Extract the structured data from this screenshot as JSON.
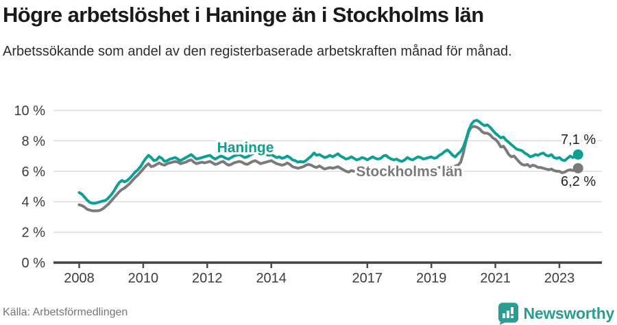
{
  "header": {
    "title": "Högre arbetslöshet i Haninge än i Stockholms län",
    "subtitle": "Arbetssökande som andel av den registerbaserade arbetskraften månad för månad."
  },
  "chart_data": {
    "type": "line",
    "title": "Högre arbetslöshet i Haninge än i Stockholms län",
    "subtitle": "Arbetssökande som andel av den registerbaserade arbetskraften månad för månad.",
    "x_start": "2008-01",
    "x_interval": "monthly",
    "x_end": "2023-08",
    "ylim": [
      0,
      10
    ],
    "grid": "horizontal",
    "y_ticks": [
      {
        "value": 0,
        "label": "0 %"
      },
      {
        "value": 2,
        "label": "2 %"
      },
      {
        "value": 4,
        "label": "4 %"
      },
      {
        "value": 6,
        "label": "6 %"
      },
      {
        "value": 8,
        "label": "8 %"
      },
      {
        "value": 10,
        "label": "10 %"
      }
    ],
    "x_ticks": [
      {
        "year": 2008,
        "label": "2008"
      },
      {
        "year": 2010,
        "label": "2010"
      },
      {
        "year": 2012,
        "label": "2012"
      },
      {
        "year": 2014,
        "label": "2014"
      },
      {
        "year": 2017,
        "label": "2017"
      },
      {
        "year": 2019,
        "label": "2019"
      },
      {
        "year": 2021,
        "label": "2021"
      },
      {
        "year": 2023,
        "label": "2023"
      }
    ],
    "series": [
      {
        "name": "Haninge",
        "color": "#0ba093",
        "end_label": "7,1 %",
        "last_value": 7.1,
        "values": [
          4.6,
          4.5,
          4.3,
          4.1,
          3.95,
          3.9,
          3.9,
          3.95,
          4.0,
          4.05,
          4.1,
          4.25,
          4.45,
          4.7,
          5.0,
          5.25,
          5.4,
          5.3,
          5.4,
          5.55,
          5.75,
          5.95,
          6.1,
          6.3,
          6.6,
          6.85,
          7.05,
          6.9,
          6.7,
          6.75,
          6.95,
          6.85,
          6.65,
          6.7,
          6.8,
          6.85,
          6.9,
          6.8,
          6.7,
          6.8,
          6.9,
          7.0,
          7.1,
          6.95,
          6.8,
          6.85,
          6.9,
          6.95,
          7.0,
          7.05,
          6.9,
          6.8,
          6.9,
          7.0,
          6.95,
          6.85,
          6.8,
          6.9,
          7.0,
          7.05,
          7.1,
          7.0,
          6.9,
          6.95,
          7.05,
          7.15,
          7.2,
          7.1,
          7.0,
          7.05,
          7.1,
          7.05,
          7.1,
          7.0,
          6.9,
          6.95,
          6.85,
          6.9,
          7.0,
          6.9,
          6.75,
          6.7,
          6.6,
          6.65,
          6.6,
          6.7,
          6.85,
          7.0,
          7.2,
          7.05,
          7.1,
          7.0,
          6.9,
          6.95,
          7.05,
          6.95,
          7.05,
          7.15,
          7.0,
          6.9,
          6.8,
          6.85,
          6.95,
          6.85,
          6.75,
          6.8,
          6.9,
          6.85,
          6.75,
          6.85,
          6.95,
          6.85,
          6.8,
          6.85,
          7.0,
          7.05,
          6.9,
          6.8,
          6.75,
          6.8,
          6.7,
          6.65,
          6.75,
          6.9,
          6.8,
          6.75,
          6.85,
          6.95,
          6.9,
          6.8,
          6.85,
          6.9,
          6.95,
          6.85,
          6.9,
          7.05,
          7.15,
          7.3,
          7.4,
          7.25,
          7.05,
          6.95,
          7.15,
          7.3,
          7.6,
          8.1,
          8.7,
          9.1,
          9.3,
          9.35,
          9.25,
          9.1,
          9.0,
          9.05,
          8.9,
          8.7,
          8.5,
          8.35,
          8.2,
          8.25,
          8.05,
          7.9,
          7.75,
          7.6,
          7.45,
          7.4,
          7.35,
          7.2,
          7.1,
          6.95,
          7.0,
          7.1,
          7.05,
          7.15,
          7.2,
          7.05,
          7.0,
          7.1,
          6.9,
          6.85,
          6.9,
          6.75,
          6.7,
          6.85,
          7.0,
          6.9,
          7.0,
          7.1
        ]
      },
      {
        "name": "Stockholms län",
        "color": "#7a7a7a",
        "end_label": "6,2 %",
        "last_value": 6.2,
        "values": [
          3.8,
          3.75,
          3.65,
          3.5,
          3.45,
          3.4,
          3.4,
          3.4,
          3.45,
          3.55,
          3.7,
          3.85,
          4.05,
          4.25,
          4.45,
          4.65,
          4.8,
          4.9,
          5.05,
          5.2,
          5.4,
          5.6,
          5.75,
          5.95,
          6.15,
          6.35,
          6.5,
          6.3,
          6.35,
          6.45,
          6.55,
          6.45,
          6.4,
          6.5,
          6.55,
          6.6,
          6.65,
          6.6,
          6.5,
          6.55,
          6.6,
          6.7,
          6.75,
          6.6,
          6.5,
          6.55,
          6.6,
          6.55,
          6.6,
          6.65,
          6.55,
          6.45,
          6.5,
          6.6,
          6.65,
          6.5,
          6.4,
          6.45,
          6.55,
          6.6,
          6.65,
          6.6,
          6.5,
          6.45,
          6.55,
          6.65,
          6.7,
          6.6,
          6.5,
          6.55,
          6.6,
          6.65,
          6.7,
          6.6,
          6.5,
          6.45,
          6.4,
          6.45,
          6.55,
          6.45,
          6.3,
          6.25,
          6.2,
          6.25,
          6.3,
          6.4,
          6.45,
          6.4,
          6.3,
          6.25,
          6.35,
          6.25,
          6.15,
          6.2,
          6.25,
          6.2,
          6.25,
          6.3,
          6.2,
          6.1,
          6.0,
          5.95,
          6.05,
          6.0,
          5.95,
          6.0,
          6.05,
          6.0,
          5.95,
          6.0,
          6.05,
          6.0,
          5.95,
          6.0,
          6.1,
          6.05,
          6.0,
          6.05,
          6.1,
          6.05,
          6.0,
          5.95,
          6.05,
          6.15,
          6.1,
          6.05,
          6.1,
          6.15,
          6.1,
          6.05,
          6.1,
          6.15,
          6.2,
          6.15,
          6.2,
          6.25,
          6.3,
          6.35,
          6.4,
          6.35,
          6.3,
          6.35,
          6.4,
          6.6,
          7.2,
          8.0,
          8.6,
          8.9,
          8.95,
          8.9,
          8.8,
          8.6,
          8.5,
          8.5,
          8.4,
          8.2,
          8.1,
          7.9,
          7.6,
          7.65,
          7.4,
          7.1,
          6.95,
          7.0,
          6.8,
          6.6,
          6.45,
          6.4,
          6.45,
          6.3,
          6.4,
          6.35,
          6.25,
          6.25,
          6.2,
          6.15,
          6.1,
          6.15,
          6.05,
          6.0,
          6.0,
          5.9,
          5.95,
          6.05,
          6.1,
          6.05,
          6.1,
          6.2
        ]
      }
    ]
  },
  "footer": {
    "source": "Källa: Arbetsförmedlingen",
    "brand": "Newsworthy"
  }
}
